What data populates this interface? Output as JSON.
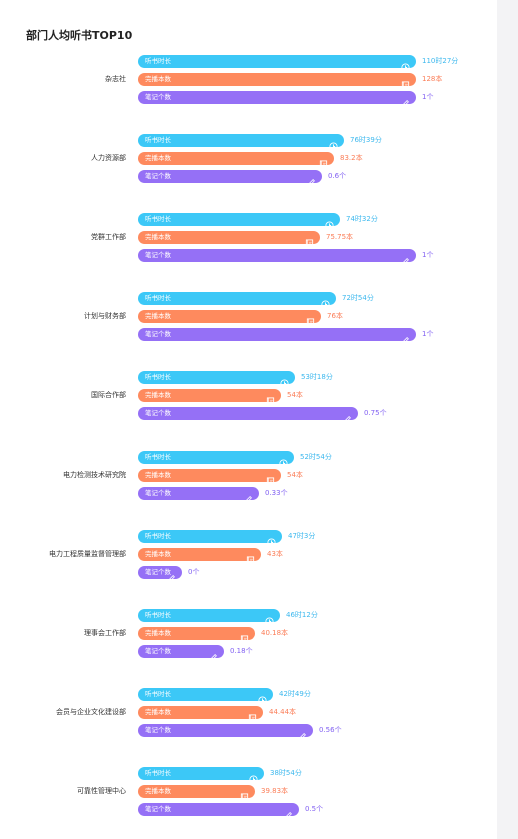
{
  "title": "部门人均听书TOP10",
  "colors": {
    "listen": "#3cc8f7",
    "books": "#fe8a5e",
    "notes": "#9570f6",
    "listen_text": "#3cb8ee",
    "books_text": "#fb7d57",
    "notes_text": "#8261f2"
  },
  "metric_labels": {
    "listen": "听书时长",
    "books": "完播本数",
    "notes": "笔记个数"
  },
  "icons": {
    "listen": "clock-icon",
    "books": "book-icon",
    "notes": "pencil-icon"
  },
  "chart_data": {
    "type": "bar",
    "title": "部门人均听书TOP10",
    "categories": [
      "杂志社",
      "人力资源部",
      "党群工作部",
      "计划与财务部",
      "国际合作部",
      "电力检测技术研究院",
      "电力工程质量监督管理部",
      "理事会工作部",
      "会员与企业文化建设部",
      "可靠性管理中心"
    ],
    "series": [
      {
        "name": "听书时长",
        "values_minutes": [
          6627,
          4599,
          4472,
          4374,
          3198,
          3174,
          2823,
          2772,
          2569,
          2334
        ],
        "value_labels": [
          "110时27分",
          "76时39分",
          "74时32分",
          "72时54分",
          "53时18分",
          "52时54分",
          "47时3分",
          "46时12分",
          "42时49分",
          "38时54分"
        ]
      },
      {
        "name": "完播本数",
        "values": [
          128,
          83.2,
          75.75,
          76,
          54,
          54,
          43,
          40.18,
          44.44,
          39.83
        ],
        "value_labels": [
          "128本",
          "83.2本",
          "75.75本",
          "76本",
          "54本",
          "54本",
          "43本",
          "40.18本",
          "44.44本",
          "39.83本"
        ]
      },
      {
        "name": "笔记个数",
        "values": [
          1,
          0.6,
          1,
          1,
          0.75,
          0.33,
          0,
          0.18,
          0.56,
          0.5
        ],
        "value_labels": [
          "1个",
          "0.6个",
          "1个",
          "1个",
          "0.75个",
          "0.33个",
          "0个",
          "0.18个",
          "0.56个",
          "0.5个"
        ]
      }
    ]
  }
}
